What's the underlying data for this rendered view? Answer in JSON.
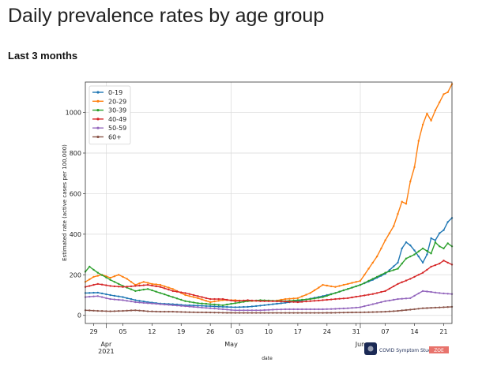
{
  "page": {
    "title": "Daily prevalence rates by age group",
    "subtitle": "Last 3 months"
  },
  "brand": {
    "name": "COVID Symptom Study",
    "tag": "ZOE",
    "tag_color": "#e8736c",
    "logo_color": "#1b2a55"
  },
  "chart_data": {
    "type": "line",
    "xlabel": "date",
    "ylabel": "Estimated rate (active cases per 100,000)",
    "x_start": "2021-03-27",
    "x_end": "2021-06-23",
    "ylim": [
      -40,
      1150
    ],
    "yticks": [
      0,
      200,
      400,
      600,
      800,
      1000
    ],
    "xticks": [
      {
        "date": "2021-03-29",
        "label": "29"
      },
      {
        "date": "2021-04-05",
        "label": "05"
      },
      {
        "date": "2021-04-12",
        "label": "12"
      },
      {
        "date": "2021-04-19",
        "label": "19"
      },
      {
        "date": "2021-04-26",
        "label": "26"
      },
      {
        "date": "2021-05-03",
        "label": "03"
      },
      {
        "date": "2021-05-10",
        "label": "10"
      },
      {
        "date": "2021-05-17",
        "label": "17"
      },
      {
        "date": "2021-05-24",
        "label": "24"
      },
      {
        "date": "2021-05-31",
        "label": "31"
      },
      {
        "date": "2021-06-07",
        "label": "07"
      },
      {
        "date": "2021-06-14",
        "label": "14"
      },
      {
        "date": "2021-06-21",
        "label": "21"
      }
    ],
    "month_labels": [
      {
        "date": "2021-04-01",
        "label": "Apr",
        "sub": "2021"
      },
      {
        "date": "2021-05-01",
        "label": "May",
        "sub": ""
      },
      {
        "date": "2021-06-01",
        "label": "Jun",
        "sub": ""
      }
    ],
    "grid": true,
    "legend_position": "top-left",
    "series": [
      {
        "name": "0-19",
        "color": "#1f77b4",
        "points": [
          [
            "2021-03-27",
            110
          ],
          [
            "2021-03-30",
            112
          ],
          [
            "2021-04-02",
            100
          ],
          [
            "2021-04-05",
            90
          ],
          [
            "2021-04-08",
            75
          ],
          [
            "2021-04-11",
            65
          ],
          [
            "2021-04-14",
            58
          ],
          [
            "2021-04-17",
            55
          ],
          [
            "2021-04-20",
            50
          ],
          [
            "2021-04-23",
            48
          ],
          [
            "2021-04-26",
            45
          ],
          [
            "2021-04-29",
            42
          ],
          [
            "2021-05-02",
            40
          ],
          [
            "2021-05-05",
            42
          ],
          [
            "2021-05-08",
            48
          ],
          [
            "2021-05-11",
            55
          ],
          [
            "2021-05-14",
            62
          ],
          [
            "2021-05-17",
            70
          ],
          [
            "2021-05-20",
            82
          ],
          [
            "2021-05-23",
            95
          ],
          [
            "2021-05-26",
            110
          ],
          [
            "2021-05-29",
            130
          ],
          [
            "2021-06-01",
            150
          ],
          [
            "2021-06-04",
            175
          ],
          [
            "2021-06-07",
            205
          ],
          [
            "2021-06-10",
            260
          ],
          [
            "2021-06-11",
            330
          ],
          [
            "2021-06-12",
            360
          ],
          [
            "2021-06-13",
            345
          ],
          [
            "2021-06-14",
            320
          ],
          [
            "2021-06-15",
            290
          ],
          [
            "2021-06-16",
            260
          ],
          [
            "2021-06-17",
            300
          ],
          [
            "2021-06-18",
            380
          ],
          [
            "2021-06-19",
            370
          ],
          [
            "2021-06-20",
            405
          ],
          [
            "2021-06-21",
            420
          ],
          [
            "2021-06-22",
            460
          ],
          [
            "2021-06-23",
            480
          ]
        ]
      },
      {
        "name": "20-29",
        "color": "#ff7f0e",
        "points": [
          [
            "2021-03-27",
            165
          ],
          [
            "2021-03-29",
            190
          ],
          [
            "2021-03-31",
            200
          ],
          [
            "2021-04-02",
            185
          ],
          [
            "2021-04-04",
            200
          ],
          [
            "2021-04-06",
            180
          ],
          [
            "2021-04-08",
            150
          ],
          [
            "2021-04-10",
            165
          ],
          [
            "2021-04-12",
            155
          ],
          [
            "2021-04-14",
            150
          ],
          [
            "2021-04-17",
            130
          ],
          [
            "2021-04-20",
            100
          ],
          [
            "2021-04-23",
            85
          ],
          [
            "2021-04-26",
            65
          ],
          [
            "2021-04-29",
            75
          ],
          [
            "2021-05-02",
            75
          ],
          [
            "2021-05-05",
            70
          ],
          [
            "2021-05-08",
            72
          ],
          [
            "2021-05-11",
            70
          ],
          [
            "2021-05-14",
            80
          ],
          [
            "2021-05-17",
            85
          ],
          [
            "2021-05-20",
            110
          ],
          [
            "2021-05-23",
            150
          ],
          [
            "2021-05-26",
            140
          ],
          [
            "2021-05-29",
            155
          ],
          [
            "2021-06-01",
            170
          ],
          [
            "2021-06-03",
            230
          ],
          [
            "2021-06-05",
            290
          ],
          [
            "2021-06-07",
            370
          ],
          [
            "2021-06-09",
            440
          ],
          [
            "2021-06-11",
            560
          ],
          [
            "2021-06-12",
            550
          ],
          [
            "2021-06-13",
            660
          ],
          [
            "2021-06-14",
            730
          ],
          [
            "2021-06-15",
            860
          ],
          [
            "2021-06-16",
            940
          ],
          [
            "2021-06-17",
            995
          ],
          [
            "2021-06-18",
            960
          ],
          [
            "2021-06-19",
            1010
          ],
          [
            "2021-06-20",
            1050
          ],
          [
            "2021-06-21",
            1090
          ],
          [
            "2021-06-22",
            1100
          ],
          [
            "2021-06-23",
            1140
          ]
        ]
      },
      {
        "name": "30-39",
        "color": "#2ca02c",
        "points": [
          [
            "2021-03-27",
            215
          ],
          [
            "2021-03-28",
            240
          ],
          [
            "2021-03-30",
            210
          ],
          [
            "2021-04-02",
            175
          ],
          [
            "2021-04-05",
            145
          ],
          [
            "2021-04-08",
            120
          ],
          [
            "2021-04-11",
            130
          ],
          [
            "2021-04-14",
            110
          ],
          [
            "2021-04-17",
            90
          ],
          [
            "2021-04-20",
            70
          ],
          [
            "2021-04-23",
            60
          ],
          [
            "2021-04-26",
            55
          ],
          [
            "2021-04-29",
            50
          ],
          [
            "2021-05-02",
            60
          ],
          [
            "2021-05-05",
            70
          ],
          [
            "2021-05-08",
            75
          ],
          [
            "2021-05-11",
            72
          ],
          [
            "2021-05-14",
            70
          ],
          [
            "2021-05-17",
            75
          ],
          [
            "2021-05-20",
            80
          ],
          [
            "2021-05-23",
            90
          ],
          [
            "2021-05-26",
            110
          ],
          [
            "2021-05-29",
            130
          ],
          [
            "2021-06-01",
            150
          ],
          [
            "2021-06-04",
            180
          ],
          [
            "2021-06-07",
            210
          ],
          [
            "2021-06-10",
            230
          ],
          [
            "2021-06-12",
            280
          ],
          [
            "2021-06-14",
            300
          ],
          [
            "2021-06-16",
            330
          ],
          [
            "2021-06-18",
            305
          ],
          [
            "2021-06-19",
            360
          ],
          [
            "2021-06-20",
            340
          ],
          [
            "2021-06-21",
            330
          ],
          [
            "2021-06-22",
            355
          ],
          [
            "2021-06-23",
            340
          ]
        ]
      },
      {
        "name": "40-49",
        "color": "#d62728",
        "points": [
          [
            "2021-03-27",
            140
          ],
          [
            "2021-03-30",
            155
          ],
          [
            "2021-04-02",
            145
          ],
          [
            "2021-04-05",
            140
          ],
          [
            "2021-04-08",
            145
          ],
          [
            "2021-04-11",
            150
          ],
          [
            "2021-04-14",
            140
          ],
          [
            "2021-04-17",
            120
          ],
          [
            "2021-04-20",
            110
          ],
          [
            "2021-04-23",
            95
          ],
          [
            "2021-04-26",
            80
          ],
          [
            "2021-04-29",
            80
          ],
          [
            "2021-05-02",
            70
          ],
          [
            "2021-05-05",
            75
          ],
          [
            "2021-05-08",
            70
          ],
          [
            "2021-05-11",
            70
          ],
          [
            "2021-05-14",
            68
          ],
          [
            "2021-05-17",
            65
          ],
          [
            "2021-05-20",
            70
          ],
          [
            "2021-05-23",
            75
          ],
          [
            "2021-05-26",
            80
          ],
          [
            "2021-05-29",
            85
          ],
          [
            "2021-06-01",
            95
          ],
          [
            "2021-06-04",
            105
          ],
          [
            "2021-06-07",
            120
          ],
          [
            "2021-06-10",
            155
          ],
          [
            "2021-06-13",
            180
          ],
          [
            "2021-06-16",
            210
          ],
          [
            "2021-06-18",
            240
          ],
          [
            "2021-06-20",
            255
          ],
          [
            "2021-06-21",
            270
          ],
          [
            "2021-06-23",
            250
          ]
        ]
      },
      {
        "name": "50-59",
        "color": "#9467bd",
        "points": [
          [
            "2021-03-27",
            90
          ],
          [
            "2021-03-30",
            95
          ],
          [
            "2021-04-02",
            80
          ],
          [
            "2021-04-05",
            75
          ],
          [
            "2021-04-08",
            65
          ],
          [
            "2021-04-11",
            60
          ],
          [
            "2021-04-14",
            55
          ],
          [
            "2021-04-17",
            50
          ],
          [
            "2021-04-20",
            45
          ],
          [
            "2021-04-23",
            40
          ],
          [
            "2021-04-26",
            35
          ],
          [
            "2021-04-29",
            30
          ],
          [
            "2021-05-02",
            25
          ],
          [
            "2021-05-05",
            25
          ],
          [
            "2021-05-08",
            25
          ],
          [
            "2021-05-11",
            28
          ],
          [
            "2021-05-14",
            30
          ],
          [
            "2021-05-17",
            30
          ],
          [
            "2021-05-20",
            30
          ],
          [
            "2021-05-23",
            30
          ],
          [
            "2021-05-26",
            32
          ],
          [
            "2021-05-29",
            35
          ],
          [
            "2021-06-01",
            40
          ],
          [
            "2021-06-04",
            55
          ],
          [
            "2021-06-07",
            70
          ],
          [
            "2021-06-10",
            80
          ],
          [
            "2021-06-13",
            85
          ],
          [
            "2021-06-16",
            120
          ],
          [
            "2021-06-18",
            115
          ],
          [
            "2021-06-20",
            110
          ],
          [
            "2021-06-23",
            105
          ]
        ]
      },
      {
        "name": "60+",
        "color": "#8c564b",
        "points": [
          [
            "2021-03-27",
            25
          ],
          [
            "2021-03-30",
            22
          ],
          [
            "2021-04-02",
            20
          ],
          [
            "2021-04-05",
            22
          ],
          [
            "2021-04-08",
            25
          ],
          [
            "2021-04-11",
            20
          ],
          [
            "2021-04-14",
            18
          ],
          [
            "2021-04-17",
            18
          ],
          [
            "2021-04-20",
            16
          ],
          [
            "2021-04-23",
            15
          ],
          [
            "2021-04-26",
            14
          ],
          [
            "2021-04-29",
            13
          ],
          [
            "2021-05-02",
            12
          ],
          [
            "2021-05-05",
            12
          ],
          [
            "2021-05-08",
            12
          ],
          [
            "2021-05-11",
            12
          ],
          [
            "2021-05-14",
            12
          ],
          [
            "2021-05-17",
            12
          ],
          [
            "2021-05-20",
            12
          ],
          [
            "2021-05-23",
            12
          ],
          [
            "2021-05-26",
            13
          ],
          [
            "2021-05-29",
            14
          ],
          [
            "2021-06-01",
            15
          ],
          [
            "2021-06-04",
            16
          ],
          [
            "2021-06-07",
            18
          ],
          [
            "2021-06-10",
            22
          ],
          [
            "2021-06-13",
            28
          ],
          [
            "2021-06-16",
            35
          ],
          [
            "2021-06-19",
            38
          ],
          [
            "2021-06-21",
            40
          ],
          [
            "2021-06-23",
            42
          ]
        ]
      }
    ]
  }
}
